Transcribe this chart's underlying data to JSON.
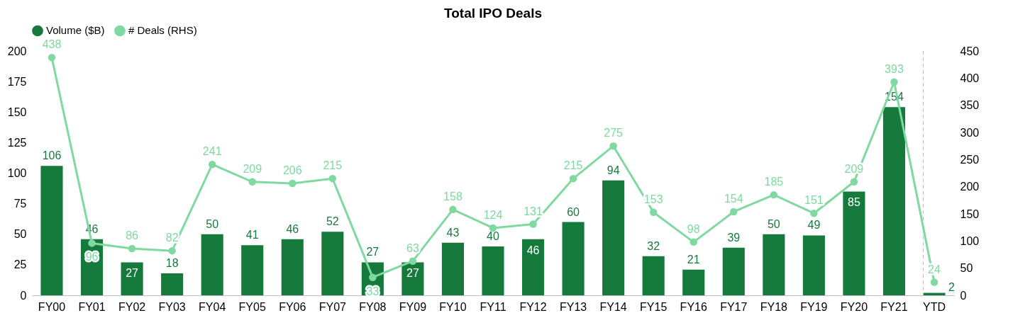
{
  "chart_data": {
    "type": "bar",
    "title": "Total IPO Deals",
    "categories": [
      "FY00",
      "FY01",
      "FY02",
      "FY03",
      "FY04",
      "FY05",
      "FY06",
      "FY07",
      "FY08",
      "FY09",
      "FY10",
      "FY11",
      "FY12",
      "FY13",
      "FY14",
      "FY15",
      "FY16",
      "FY17",
      "FY18",
      "FY19",
      "FY20",
      "FY21",
      "YTD"
    ],
    "series": [
      {
        "name": "Volume ($B)",
        "type": "bar",
        "color": "#157a3c",
        "values": [
          106,
          46,
          27,
          18,
          50,
          41,
          46,
          52,
          27,
          27,
          43,
          40,
          46,
          60,
          94,
          32,
          21,
          39,
          50,
          49,
          85,
          154,
          2
        ]
      },
      {
        "name": "# Deals (RHS)",
        "type": "line",
        "axis": "y2",
        "color": "#7fd9a0",
        "marker": "circle",
        "values": [
          438,
          96,
          86,
          82,
          241,
          209,
          206,
          215,
          33,
          63,
          158,
          124,
          131,
          215,
          275,
          153,
          98,
          154,
          185,
          151,
          209,
          393,
          24
        ]
      }
    ],
    "ylim": [
      0,
      200
    ],
    "yticks": [
      0,
      25,
      50,
      75,
      100,
      125,
      150,
      175,
      200
    ],
    "y2lim": [
      0,
      450
    ],
    "y2ticks": [
      0,
      50,
      100,
      150,
      200,
      250,
      300,
      350,
      400,
      450
    ],
    "ref_lines": [
      {
        "axis": "x",
        "value": "YTD",
        "color": "#bfbfbf",
        "line_style": "dashed"
      }
    ],
    "data_labels": true,
    "legend": "top",
    "grid": false
  }
}
